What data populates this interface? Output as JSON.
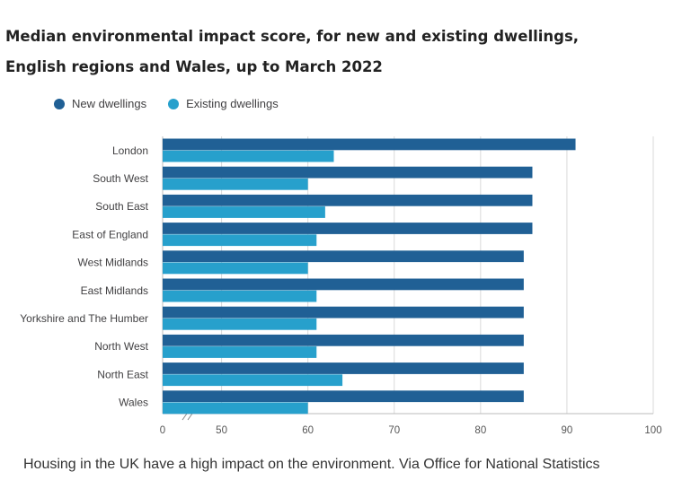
{
  "chart_data": {
    "type": "bar",
    "orientation": "horizontal",
    "title": "Median environmental impact score, for new and existing dwellings,",
    "subtitle": "English regions and Wales, up to March 2022",
    "categories": [
      "London",
      "South West",
      "South East",
      "East of England",
      "West Midlands",
      "East Midlands",
      "Yorkshire and The Humber",
      "North West",
      "North East",
      "Wales"
    ],
    "series": [
      {
        "name": "New dwellings",
        "color": "#206095",
        "values": [
          91,
          86,
          86,
          86,
          85,
          85,
          85,
          85,
          85,
          85
        ]
      },
      {
        "name": "Existing dwellings",
        "color": "#27a0cc",
        "values": [
          63,
          60,
          62,
          61,
          60,
          61,
          61,
          61,
          64,
          60
        ]
      }
    ],
    "x_ticks": [
      "0",
      "50",
      "60",
      "70",
      "80",
      "90",
      "100"
    ],
    "xlim": [
      40,
      100
    ],
    "axis_break": true,
    "grid": "vertical",
    "legend": "top-left"
  },
  "caption": "Housing in the UK have a high impact on the environment. Via Office for National Statistics"
}
